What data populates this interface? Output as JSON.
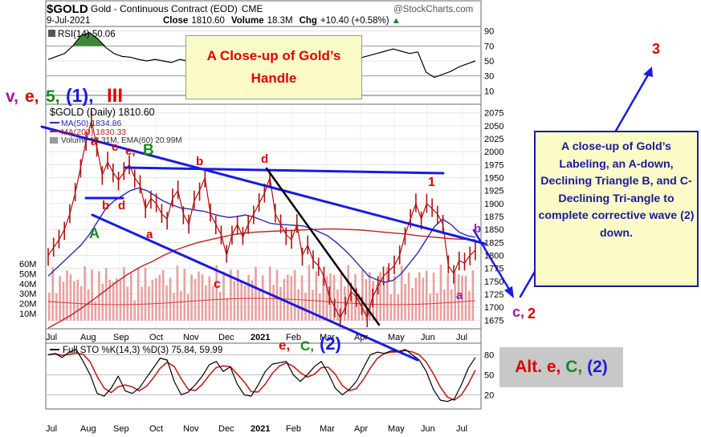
{
  "chart_data": {
    "type": "line",
    "header": {
      "symbol": "$GOLD",
      "name": "Gold - Continuous Contract (EOD)",
      "exchange": "CME",
      "watermark": "@StockCharts.com",
      "date": "9-Jul-2021",
      "close_label": "Close",
      "close": "1810.60",
      "volume_label": "Volume",
      "volume": "18.3M",
      "change_label": "Chg",
      "change": "+10.40 (+0.58%)",
      "change_arrow": "▲"
    },
    "rsi": {
      "label": "RSI(14) 50.06",
      "ticks": [
        90,
        70,
        50,
        30,
        10
      ],
      "values": [
        52,
        56,
        60,
        70,
        84,
        88,
        80,
        68,
        60,
        56,
        55,
        52,
        50,
        52,
        50,
        48,
        52,
        50,
        46,
        50,
        52,
        50,
        48,
        50,
        53,
        50,
        47,
        44,
        46,
        50,
        47,
        44,
        47,
        52,
        56,
        54,
        50,
        52,
        54,
        57,
        60,
        63,
        66,
        63,
        60,
        62,
        35,
        28,
        32,
        36,
        42,
        46,
        50
      ]
    },
    "price": {
      "label": "$GOLD (Daily) 1810.60",
      "ma50_label": "MA(50) 1834.86",
      "ma200_label": "MA(200) 1830.33",
      "volume_label": "Volume 18.31M, EMA(60) 20.99M",
      "ylim": [
        1660,
        2090
      ],
      "yticks": [
        2075,
        2050,
        2025,
        2000,
        1975,
        1950,
        1925,
        1900,
        1875,
        1850,
        1825,
        1800,
        1775,
        1750,
        1725,
        1700,
        1675
      ],
      "volume_ticks": [
        "60M",
        "50M",
        "40M",
        "30M",
        "20M",
        "10M"
      ],
      "closes": [
        1800,
        1815,
        1830,
        1850,
        1880,
        1920,
        1970,
        2020,
        2060,
        2010,
        1955,
        1980,
        1960,
        1945,
        1960,
        1975,
        1950,
        1935,
        1890,
        1910,
        1900,
        1880,
        1870,
        1910,
        1925,
        1880,
        1860,
        1905,
        1925,
        1950,
        1880,
        1860,
        1840,
        1800,
        1840,
        1860,
        1835,
        1860,
        1880,
        1900,
        1920,
        1950,
        1880,
        1860,
        1840,
        1830,
        1860,
        1800,
        1820,
        1790,
        1780,
        1760,
        1720,
        1700,
        1680,
        1700,
        1730,
        1720,
        1700,
        1680,
        1720,
        1740,
        1760,
        1770,
        1780,
        1800,
        1840,
        1870,
        1900,
        1870,
        1900,
        1890,
        1880,
        1860,
        1780,
        1765,
        1790,
        1785,
        1800,
        1810
      ],
      "ma50": [
        1760,
        1775,
        1790,
        1805,
        1820,
        1840,
        1865,
        1890,
        1905,
        1915,
        1925,
        1930,
        1925,
        1915,
        1905,
        1898,
        1892,
        1890,
        1887,
        1885,
        1880,
        1876,
        1873,
        1875,
        1878,
        1874,
        1868,
        1862,
        1860,
        1859,
        1858,
        1857,
        1852,
        1845,
        1838,
        1826,
        1812,
        1796,
        1778,
        1760,
        1753,
        1748,
        1752,
        1765,
        1785,
        1805,
        1830,
        1855,
        1870,
        1860,
        1845,
        1838,
        1835
      ],
      "ma200": [
        1660,
        1672,
        1685,
        1700,
        1716,
        1733,
        1750,
        1765,
        1778,
        1788,
        1800,
        1810,
        1818,
        1825,
        1830,
        1835,
        1840,
        1843,
        1845,
        1846,
        1847,
        1848,
        1849,
        1850,
        1851,
        1851,
        1850,
        1849,
        1847,
        1845,
        1843,
        1841,
        1838,
        1836,
        1834,
        1832,
        1831,
        1830
      ]
    },
    "sto": {
      "label": "Full STO %K(14,3) %D(3) 75.84, 59.99",
      "ticks": [
        80,
        50,
        20
      ],
      "k": [
        80,
        82,
        76,
        84,
        88,
        70,
        50,
        22,
        18,
        30,
        48,
        26,
        22,
        30,
        45,
        60,
        75,
        72,
        40,
        20,
        24,
        35,
        48,
        65,
        70,
        55,
        62,
        36,
        20,
        18,
        35,
        55,
        66,
        68,
        70,
        50,
        40,
        50,
        62,
        70,
        52,
        30,
        20,
        28,
        40,
        60,
        80,
        84,
        82,
        86,
        85,
        88,
        80,
        72,
        55,
        28,
        12,
        10,
        14,
        35,
        60,
        76
      ]
    },
    "x_months": [
      "Jul",
      "Aug",
      "Sep",
      "Oct",
      "Nov",
      "Dec",
      "2021",
      "Feb",
      "Mar",
      "Apr",
      "May",
      "Jun",
      "Jul"
    ],
    "annotations": {
      "title": "A Close-up of Gold’s Handle",
      "description": "A close-up of Gold’s Labeling, an A-down, Declining Triangle B, and C-Declining Tri-angle to complete corrective wave (2) down.",
      "alt": "Alt. e, C, (2)",
      "wave_labels": [
        {
          "text": "v,",
          "color": "#9a1aa0"
        },
        {
          "text": "e,",
          "color": "#e00000"
        },
        {
          "text": "5,",
          "color": "#1a8a1a"
        },
        {
          "text": "(1),",
          "color": "#1a1ae0"
        },
        {
          "text": "III",
          "color": "#e00000"
        },
        {
          "text": "3",
          "color": "#e00000"
        },
        {
          "text": "c,",
          "color": "#9a1aa0"
        },
        {
          "text": "2",
          "color": "#e00000"
        },
        {
          "text": "a",
          "color": "#e00000"
        },
        {
          "text": "c",
          "color": "#e00000"
        },
        {
          "text": "e,",
          "color": "#e00000"
        },
        {
          "text": "B",
          "color": "#1a8a1a"
        },
        {
          "text": "b",
          "color": "#e00000"
        },
        {
          "text": "d",
          "color": "#e00000"
        },
        {
          "text": "A",
          "color": "#1a8a1a"
        },
        {
          "text": "a",
          "color": "#e00000"
        },
        {
          "text": "b",
          "color": "#e00000"
        },
        {
          "text": "d",
          "color": "#e00000"
        },
        {
          "text": "c",
          "color": "#e00000"
        },
        {
          "text": "1",
          "color": "#e00000"
        },
        {
          "text": "b",
          "color": "#9a1aa0"
        },
        {
          "text": "a",
          "color": "#9a1aa0"
        },
        {
          "text": "e,",
          "color": "#e00000"
        },
        {
          "text": "C,",
          "color": "#1a8a1a"
        },
        {
          "text": "(2)",
          "color": "#1a1ae0"
        },
        {
          "text": "Alt. e,",
          "color": "#e00000"
        },
        {
          "text": "C,",
          "color": "#1a8a1a"
        },
        {
          "text": "(2)",
          "color": "#1a1ae0"
        }
      ]
    },
    "colors": {
      "price": "#b01010",
      "ma50": "#2a2ab0",
      "ma200": "#c02020",
      "trendlines": "#1a1ae0",
      "steep_line": "#000000",
      "rsi_fill": "#3a8a3a",
      "volume": "#e8a0a0"
    }
  }
}
